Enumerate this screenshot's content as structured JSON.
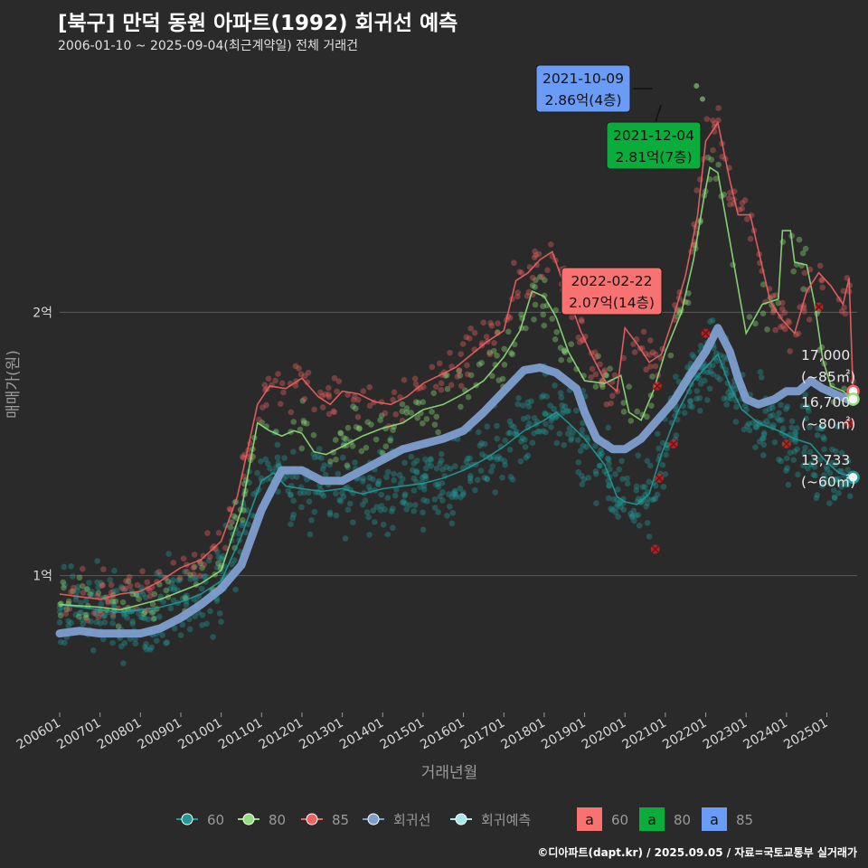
{
  "title": "[북구] 만덕 동원 아파트(1992) 회귀선 예측",
  "subtitle": "2006-01-10 ~ 2025-09-04(최근계약일) 전체 거래건",
  "footer": "©디아파트(dapt.kr) / 2025.09.05 / 자료=국토교통부 실거래가",
  "colors": {
    "background": "#2b2a2b",
    "grid": "#5a5a5a",
    "s60": "#1f9a98",
    "s80": "#8ee07a",
    "s85": "#ef6262",
    "regression": "#7e9ecf",
    "prediction": "#a8e8e8",
    "cancel": "#d42a2a",
    "label60": "#f87272",
    "label80": "#0aac3c",
    "label85": "#6a9cf6"
  },
  "chart_data": {
    "type": "line",
    "xlabel": "거래년월",
    "ylabel": "매매가(원)",
    "x_ticks": [
      "200601",
      "200701",
      "200801",
      "200901",
      "201001",
      "201101",
      "201201",
      "201301",
      "201401",
      "201501",
      "201601",
      "201701",
      "201801",
      "201901",
      "202001",
      "202101",
      "202201",
      "202301",
      "202401",
      "202501"
    ],
    "y_ticks": [
      {
        "label": "1억",
        "value": 10000
      },
      {
        "label": "2억",
        "value": 20000
      }
    ],
    "xlim": [
      2006.0,
      2025.75
    ],
    "ylim": [
      4800,
      29800
    ],
    "series": [
      {
        "name": "60",
        "color": "#1f9a98",
        "points": [
          [
            2006.0,
            8900
          ],
          [
            2006.5,
            8800
          ],
          [
            2007.0,
            8700
          ],
          [
            2007.5,
            8600
          ],
          [
            2008.0,
            8700
          ],
          [
            2008.5,
            8800
          ],
          [
            2009.0,
            9000
          ],
          [
            2009.5,
            9300
          ],
          [
            2010.0,
            9800
          ],
          [
            2010.5,
            11500
          ],
          [
            2011.0,
            13600
          ],
          [
            2011.3,
            13900
          ],
          [
            2011.6,
            13400
          ],
          [
            2012.0,
            13300
          ],
          [
            2012.5,
            13200
          ],
          [
            2013.0,
            13300
          ],
          [
            2013.5,
            13100
          ],
          [
            2014.0,
            13300
          ],
          [
            2014.5,
            13400
          ],
          [
            2015.0,
            13500
          ],
          [
            2015.5,
            13700
          ],
          [
            2016.0,
            14000
          ],
          [
            2016.5,
            14400
          ],
          [
            2017.0,
            14900
          ],
          [
            2017.5,
            15500
          ],
          [
            2018.0,
            15900
          ],
          [
            2018.3,
            16200
          ],
          [
            2018.6,
            15800
          ],
          [
            2019.0,
            15200
          ],
          [
            2019.5,
            14200
          ],
          [
            2019.8,
            13000
          ],
          [
            2020.0,
            12800
          ],
          [
            2020.3,
            12700
          ],
          [
            2020.6,
            13100
          ],
          [
            2020.9,
            14600
          ],
          [
            2021.3,
            16200
          ],
          [
            2021.7,
            17400
          ],
          [
            2022.0,
            17900
          ],
          [
            2022.3,
            18400
          ],
          [
            2022.6,
            17200
          ],
          [
            2022.9,
            16300
          ],
          [
            2023.3,
            15800
          ],
          [
            2023.8,
            15500
          ],
          [
            2024.2,
            15200
          ],
          [
            2024.6,
            15000
          ],
          [
            2025.0,
            14300
          ],
          [
            2025.3,
            13900
          ],
          [
            2025.65,
            13733
          ]
        ]
      },
      {
        "name": "80",
        "color": "#8ee07a",
        "points": [
          [
            2006.0,
            8900
          ],
          [
            2006.5,
            8850
          ],
          [
            2007.0,
            8800
          ],
          [
            2007.5,
            8700
          ],
          [
            2008.0,
            8900
          ],
          [
            2008.5,
            9100
          ],
          [
            2009.0,
            9400
          ],
          [
            2009.5,
            9700
          ],
          [
            2010.0,
            10200
          ],
          [
            2010.5,
            12500
          ],
          [
            2010.9,
            15800
          ],
          [
            2011.2,
            15500
          ],
          [
            2011.5,
            15300
          ],
          [
            2011.8,
            15500
          ],
          [
            2012.0,
            15400
          ],
          [
            2012.3,
            14700
          ],
          [
            2012.6,
            14600
          ],
          [
            2013.0,
            14900
          ],
          [
            2013.5,
            15300
          ],
          [
            2014.0,
            15600
          ],
          [
            2014.5,
            15800
          ],
          [
            2015.0,
            16300
          ],
          [
            2015.5,
            16500
          ],
          [
            2016.0,
            16900
          ],
          [
            2016.5,
            17400
          ],
          [
            2017.0,
            18300
          ],
          [
            2017.4,
            19300
          ],
          [
            2017.7,
            20800
          ],
          [
            2018.0,
            20600
          ],
          [
            2018.3,
            19800
          ],
          [
            2018.6,
            18500
          ],
          [
            2019.0,
            17400
          ],
          [
            2019.5,
            17300
          ],
          [
            2019.9,
            17600
          ],
          [
            2020.1,
            16200
          ],
          [
            2020.4,
            15900
          ],
          [
            2020.7,
            17000
          ],
          [
            2021.0,
            18500
          ],
          [
            2021.4,
            20000
          ],
          [
            2021.7,
            22000
          ],
          [
            2021.95,
            24300
          ],
          [
            2022.1,
            25500
          ],
          [
            2022.3,
            25300
          ],
          [
            2023.0,
            19200
          ],
          [
            2023.4,
            20300
          ],
          [
            2023.8,
            20500
          ],
          [
            2023.9,
            23100
          ],
          [
            2024.1,
            23100
          ],
          [
            2024.2,
            21900
          ],
          [
            2024.5,
            21800
          ],
          [
            2024.7,
            20300
          ],
          [
            2024.9,
            18200
          ],
          [
            2025.1,
            17200
          ],
          [
            2025.4,
            17000
          ],
          [
            2025.65,
            16700
          ]
        ]
      },
      {
        "name": "85",
        "color": "#ef6262",
        "points": [
          [
            2006.0,
            9300
          ],
          [
            2006.5,
            9200
          ],
          [
            2007.0,
            9100
          ],
          [
            2007.5,
            9300
          ],
          [
            2008.0,
            9400
          ],
          [
            2008.5,
            9800
          ],
          [
            2009.0,
            10300
          ],
          [
            2009.5,
            10600
          ],
          [
            2010.0,
            11300
          ],
          [
            2010.4,
            13000
          ],
          [
            2010.9,
            16500
          ],
          [
            2011.2,
            17200
          ],
          [
            2011.6,
            17100
          ],
          [
            2012.0,
            17500
          ],
          [
            2012.4,
            16800
          ],
          [
            2012.7,
            16500
          ],
          [
            2013.0,
            17000
          ],
          [
            2013.4,
            16900
          ],
          [
            2013.8,
            16600
          ],
          [
            2014.2,
            16500
          ],
          [
            2014.6,
            16800
          ],
          [
            2015.0,
            17300
          ],
          [
            2015.4,
            17600
          ],
          [
            2015.8,
            17900
          ],
          [
            2016.2,
            18400
          ],
          [
            2016.6,
            18900
          ],
          [
            2017.0,
            19300
          ],
          [
            2017.3,
            21200
          ],
          [
            2017.6,
            21500
          ],
          [
            2017.9,
            22000
          ],
          [
            2018.2,
            22300
          ],
          [
            2018.5,
            21000
          ],
          [
            2018.9,
            19300
          ],
          [
            2019.2,
            18300
          ],
          [
            2019.5,
            17400
          ],
          [
            2019.8,
            17000
          ],
          [
            2020.0,
            19400
          ],
          [
            2020.3,
            18800
          ],
          [
            2020.6,
            18100
          ],
          [
            2020.9,
            18400
          ],
          [
            2021.2,
            19800
          ],
          [
            2021.5,
            21400
          ],
          [
            2021.8,
            23700
          ],
          [
            2022.0,
            26500
          ],
          [
            2022.3,
            27200
          ],
          [
            2022.6,
            25000
          ],
          [
            2022.8,
            23700
          ],
          [
            2023.1,
            23700
          ],
          [
            2023.6,
            20400
          ],
          [
            2023.9,
            19700
          ],
          [
            2024.2,
            19200
          ],
          [
            2024.5,
            20800
          ],
          [
            2024.8,
            21500
          ],
          [
            2025.1,
            21000
          ],
          [
            2025.4,
            20300
          ],
          [
            2025.55,
            21300
          ],
          [
            2025.65,
            17000
          ]
        ]
      },
      {
        "name": "회귀선",
        "color": "#7e9ecf",
        "points": [
          [
            2006.0,
            7800
          ],
          [
            2006.5,
            7900
          ],
          [
            2007.0,
            7800
          ],
          [
            2007.5,
            7800
          ],
          [
            2008.0,
            7800
          ],
          [
            2008.5,
            8000
          ],
          [
            2009.0,
            8400
          ],
          [
            2009.5,
            8900
          ],
          [
            2010.0,
            9500
          ],
          [
            2010.5,
            10400
          ],
          [
            2011.0,
            12500
          ],
          [
            2011.5,
            14000
          ],
          [
            2012.0,
            14000
          ],
          [
            2012.5,
            13600
          ],
          [
            2013.0,
            13600
          ],
          [
            2013.5,
            14000
          ],
          [
            2014.0,
            14400
          ],
          [
            2014.5,
            14800
          ],
          [
            2015.0,
            15000
          ],
          [
            2015.5,
            15200
          ],
          [
            2016.0,
            15500
          ],
          [
            2016.5,
            16200
          ],
          [
            2017.0,
            17000
          ],
          [
            2017.5,
            17800
          ],
          [
            2017.9,
            17900
          ],
          [
            2018.3,
            17700
          ],
          [
            2018.8,
            17100
          ],
          [
            2019.0,
            16200
          ],
          [
            2019.3,
            15200
          ],
          [
            2019.7,
            14800
          ],
          [
            2020.0,
            14800
          ],
          [
            2020.4,
            15200
          ],
          [
            2020.8,
            15900
          ],
          [
            2021.2,
            16600
          ],
          [
            2021.6,
            17600
          ],
          [
            2022.0,
            18500
          ],
          [
            2022.3,
            19400
          ],
          [
            2022.6,
            18500
          ],
          [
            2022.8,
            17500
          ],
          [
            2023.0,
            16700
          ],
          [
            2023.3,
            16500
          ],
          [
            2023.7,
            16700
          ],
          [
            2024.0,
            17000
          ],
          [
            2024.3,
            17000
          ],
          [
            2024.6,
            17400
          ],
          [
            2024.9,
            17100
          ],
          [
            2025.2,
            16900
          ],
          [
            2025.5,
            16700
          ],
          [
            2025.65,
            16600
          ]
        ]
      }
    ],
    "end_labels": [
      {
        "series": "85",
        "value": 17000,
        "label": "17,000",
        "area": "(~85㎡)",
        "color": "#ef6262"
      },
      {
        "series": "80",
        "value": 16700,
        "label": "16,700",
        "area": "(~80㎡)",
        "color": "#8ee07a"
      },
      {
        "series": "60",
        "value": 13733,
        "label": "13,733",
        "area": "(~60㎡)",
        "color": "#1f9a98"
      }
    ],
    "annotations": [
      {
        "date": "2021-10-09",
        "price": "2.86억(4층)",
        "x": 2021.77,
        "y": 28600,
        "box_color": "#6a9cf6"
      },
      {
        "date": "2021-12-04",
        "price": "2.81억(7층)",
        "x": 2021.92,
        "y": 28100,
        "box_color": "#0aac3c"
      },
      {
        "date": "2022-02-22",
        "price": "2.07억(14층)",
        "x": 2022.14,
        "y": 20700,
        "box_color": "#f87272"
      }
    ],
    "cancelled_deals": [
      [
        2020.75,
        11000
      ],
      [
        2020.85,
        13700
      ],
      [
        2020.8,
        17200
      ],
      [
        2021.2,
        15000
      ],
      [
        2022.0,
        19200
      ],
      [
        2024.0,
        15000
      ],
      [
        2024.8,
        20200
      ],
      [
        2025.55,
        15800
      ]
    ],
    "legend": {
      "items": [
        {
          "label": "60",
          "color": "#1f9a98"
        },
        {
          "label": "80",
          "color": "#8ee07a"
        },
        {
          "label": "85",
          "color": "#ef6262"
        },
        {
          "label": "회귀선",
          "color": "#7e9ecf"
        },
        {
          "label": "회귀예측",
          "color": "#a8e8e8"
        }
      ],
      "box_items": [
        {
          "glyph": "a",
          "label": "60",
          "color": "#f87272"
        },
        {
          "glyph": "a",
          "label": "80",
          "color": "#0aac3c"
        },
        {
          "glyph": "a",
          "label": "85",
          "color": "#6a9cf6"
        }
      ],
      "position": "bottom"
    }
  }
}
